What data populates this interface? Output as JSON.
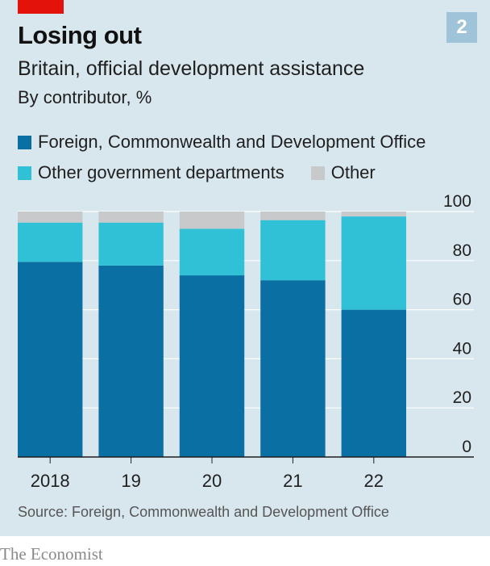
{
  "header": {
    "badge": "2",
    "title": "Losing out",
    "subtitle": "Britain, official development assistance",
    "subtitle2": "By contributor, %"
  },
  "colors": {
    "background": "#d8e6ee",
    "accent": "#e3120b",
    "badge": "#9fc3d9",
    "fcdo": "#0a6fa3",
    "other_gov": "#30c1d7",
    "other": "#c7c9cb"
  },
  "footer": {
    "source": "Source: Foreign, Commonwealth and Development Office",
    "brand": "The Economist"
  },
  "chart_data": {
    "type": "bar",
    "stacked": true,
    "categories": [
      "2018",
      "19",
      "20",
      "21",
      "22"
    ],
    "series": [
      {
        "name": "Foreign, Commonwealth and Development Office",
        "values": [
          79.5,
          78,
          74,
          72,
          60
        ],
        "color": "#0a6fa3"
      },
      {
        "name": "Other government departments",
        "values": [
          16,
          17.5,
          19,
          24.5,
          38
        ],
        "color": "#30c1d7"
      },
      {
        "name": "Other",
        "values": [
          4.5,
          4.5,
          7,
          3.5,
          2
        ],
        "color": "#c7c9cb"
      }
    ],
    "ylim": [
      0,
      100
    ],
    "yticks": [
      0,
      20,
      40,
      60,
      80,
      100
    ],
    "ytick_labels": [
      "0",
      "20",
      "40",
      "60",
      "80",
      "100"
    ],
    "y_axis_position": "right",
    "grid": true,
    "legend_position": "top"
  }
}
